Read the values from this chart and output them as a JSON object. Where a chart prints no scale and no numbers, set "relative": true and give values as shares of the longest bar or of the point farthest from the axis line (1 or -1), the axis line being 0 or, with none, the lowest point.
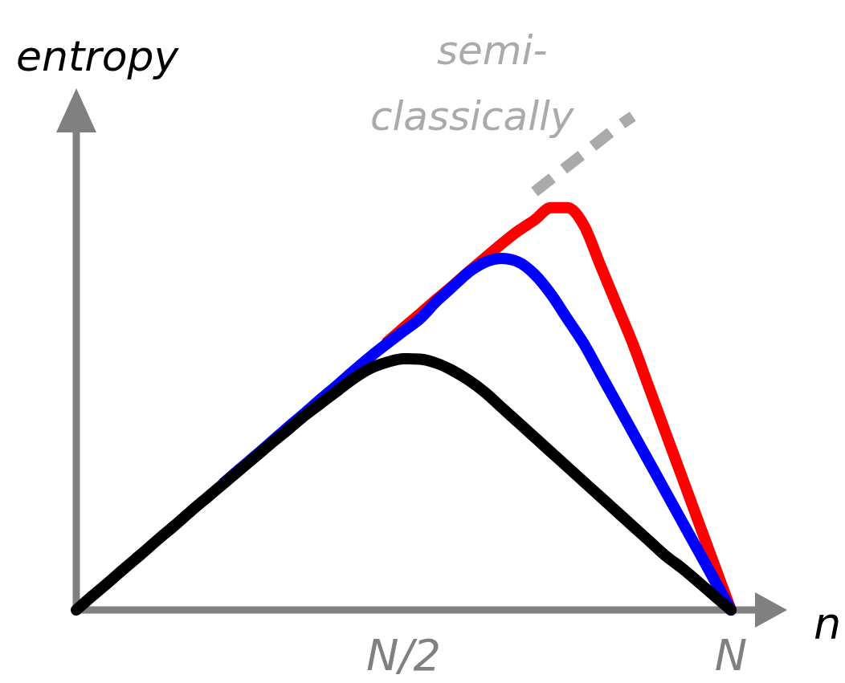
{
  "chart_data": {
    "type": "line",
    "relative": true,
    "ylabel": "entropy",
    "xlabel": "n",
    "tick_labels": "x",
    "marker": "none",
    "categories": [
      null,
      null,
      null,
      null,
      null,
      null,
      null,
      null,
      null,
      null,
      null,
      null,
      null,
      null,
      null,
      null,
      null,
      null,
      null,
      null,
      "N/2",
      null,
      null,
      null,
      null,
      null,
      null,
      null,
      null,
      null,
      null,
      null,
      null,
      null,
      null,
      null,
      null,
      null,
      null,
      null,
      "N"
    ],
    "series": [
      {
        "name": "semi-classically",
        "color": "#aaaaaa",
        "line_style": "dashed",
        "values": [
          null,
          null,
          null,
          null,
          null,
          null,
          null,
          null,
          null,
          null,
          null,
          null,
          null,
          null,
          null,
          null,
          null,
          null,
          null,
          null,
          null,
          null,
          null,
          null,
          null,
          null,
          null,
          null,
          0.847,
          0.873,
          0.899,
          0.925,
          0.951,
          0.977,
          1.0,
          null,
          null,
          null,
          null,
          null,
          null
        ]
      },
      {
        "color": "#ff0000",
        "line_style": "solid",
        "values": [
          null,
          null,
          null,
          null,
          null,
          null,
          null,
          null,
          null,
          null,
          null,
          null,
          null,
          null,
          null,
          null,
          null,
          null,
          null,
          0.543,
          0.572,
          0.6,
          0.629,
          0.657,
          0.686,
          0.714,
          0.742,
          0.768,
          0.79,
          0.815,
          0.815,
          0.78,
          0.7,
          0.62,
          0.54,
          0.45,
          0.36,
          0.27,
          0.18,
          0.09,
          0
        ]
      },
      {
        "color": "#0000ff",
        "line_style": "solid",
        "values": [
          null,
          null,
          null,
          null,
          null,
          null,
          null,
          null,
          null,
          0.257,
          0.286,
          0.314,
          0.343,
          0.372,
          0.4,
          0.429,
          0.457,
          0.486,
          0.514,
          0.54,
          0.565,
          0.59,
          0.625,
          0.655,
          0.685,
          0.705,
          0.712,
          0.705,
          0.68,
          0.64,
          0.59,
          0.54,
          0.48,
          0.42,
          0.36,
          0.3,
          0.24,
          0.18,
          0.12,
          0.06,
          0
        ]
      },
      {
        "color": "#000000",
        "line_style": "solid",
        "values": [
          0,
          0.029,
          0.057,
          0.086,
          0.114,
          0.143,
          0.171,
          0.2,
          0.228,
          0.256,
          0.284,
          0.312,
          0.34,
          0.367,
          0.395,
          0.42,
          0.445,
          0.47,
          0.49,
          0.502,
          0.509,
          0.508,
          0.5,
          0.485,
          0.465,
          0.44,
          0.41,
          0.38,
          0.35,
          0.32,
          0.29,
          0.26,
          0.23,
          0.2,
          0.17,
          0.14,
          0.11,
          0.085,
          0.057,
          0.028,
          0
        ]
      }
    ]
  }
}
